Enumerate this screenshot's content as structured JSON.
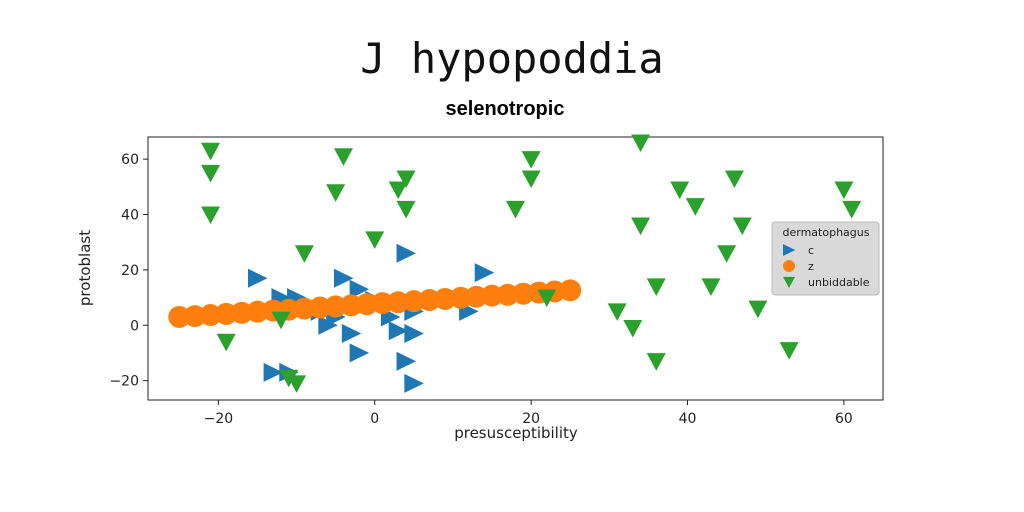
{
  "page": {
    "title": "J hypopoddia"
  },
  "chart_data": {
    "type": "scatter",
    "title": "selenotropic",
    "xlabel": "presusceptibility",
    "ylabel": "protoblast",
    "xlim": [
      -29,
      65
    ],
    "ylim": [
      -27,
      68
    ],
    "xticks": [
      -20,
      0,
      20,
      40,
      60
    ],
    "yticks": [
      -20,
      0,
      20,
      40,
      60
    ],
    "xtick_labels": [
      "−20",
      "0",
      "20",
      "40",
      "60"
    ],
    "ytick_labels": [
      "−20",
      "0",
      "20",
      "40",
      "60"
    ],
    "legend": {
      "title": "dermatophagus",
      "position": "center-right",
      "entries": [
        "c",
        "z",
        "unbiddable"
      ]
    },
    "series": [
      {
        "name": "c",
        "marker": "triangle-right",
        "color": "#1f77b4",
        "points": [
          [
            -15,
            17
          ],
          [
            -10,
            10
          ],
          [
            -7,
            5
          ],
          [
            -5,
            3
          ],
          [
            -4,
            17
          ],
          [
            -2,
            13
          ],
          [
            -6,
            0
          ],
          [
            -3,
            -3
          ],
          [
            -2,
            -10
          ],
          [
            0,
            9
          ],
          [
            2,
            3
          ],
          [
            3,
            -2
          ],
          [
            4,
            26
          ],
          [
            5,
            5
          ],
          [
            5,
            -3
          ],
          [
            4,
            -13
          ],
          [
            5,
            -21
          ],
          [
            12,
            5
          ],
          [
            14,
            19
          ],
          [
            -13,
            -17
          ],
          [
            -11,
            -17
          ],
          [
            -12,
            10
          ]
        ]
      },
      {
        "name": "z",
        "marker": "circle",
        "color": "#ff7f0e",
        "points": [
          [
            -25,
            3
          ],
          [
            -23,
            3.3
          ],
          [
            -21,
            3.7
          ],
          [
            -19,
            4.1
          ],
          [
            -17,
            4.5
          ],
          [
            -15,
            4.9
          ],
          [
            -13,
            5.3
          ],
          [
            -11,
            5.6
          ],
          [
            -9,
            6
          ],
          [
            -7,
            6.4
          ],
          [
            -5,
            6.8
          ],
          [
            -3,
            7.2
          ],
          [
            -1,
            7.6
          ],
          [
            1,
            8
          ],
          [
            3,
            8.3
          ],
          [
            5,
            8.7
          ],
          [
            7,
            9.1
          ],
          [
            9,
            9.5
          ],
          [
            11,
            9.9
          ],
          [
            13,
            10.3
          ],
          [
            15,
            10.7
          ],
          [
            17,
            11
          ],
          [
            19,
            11.4
          ],
          [
            21,
            11.8
          ],
          [
            23,
            12.2
          ],
          [
            25,
            12.6
          ]
        ]
      },
      {
        "name": "unbiddable",
        "marker": "triangle-down",
        "color": "#2ca02c",
        "points": [
          [
            -21,
            63
          ],
          [
            -21,
            55
          ],
          [
            -21,
            40
          ],
          [
            -19,
            -6
          ],
          [
            -12,
            2
          ],
          [
            -11,
            -19
          ],
          [
            -10,
            -21
          ],
          [
            -9,
            26
          ],
          [
            -5,
            48
          ],
          [
            -4,
            61
          ],
          [
            0,
            31
          ],
          [
            3,
            49
          ],
          [
            4,
            53
          ],
          [
            4,
            42
          ],
          [
            18,
            42
          ],
          [
            20,
            53
          ],
          [
            20,
            60
          ],
          [
            22,
            10
          ],
          [
            31,
            5
          ],
          [
            33,
            -1
          ],
          [
            34,
            66
          ],
          [
            34,
            36
          ],
          [
            36,
            14
          ],
          [
            36,
            -13
          ],
          [
            39,
            49
          ],
          [
            41,
            43
          ],
          [
            43,
            14
          ],
          [
            45,
            26
          ],
          [
            46,
            53
          ],
          [
            47,
            36
          ],
          [
            49,
            6
          ],
          [
            53,
            -9
          ],
          [
            60,
            49
          ],
          [
            61,
            42
          ]
        ]
      }
    ]
  }
}
